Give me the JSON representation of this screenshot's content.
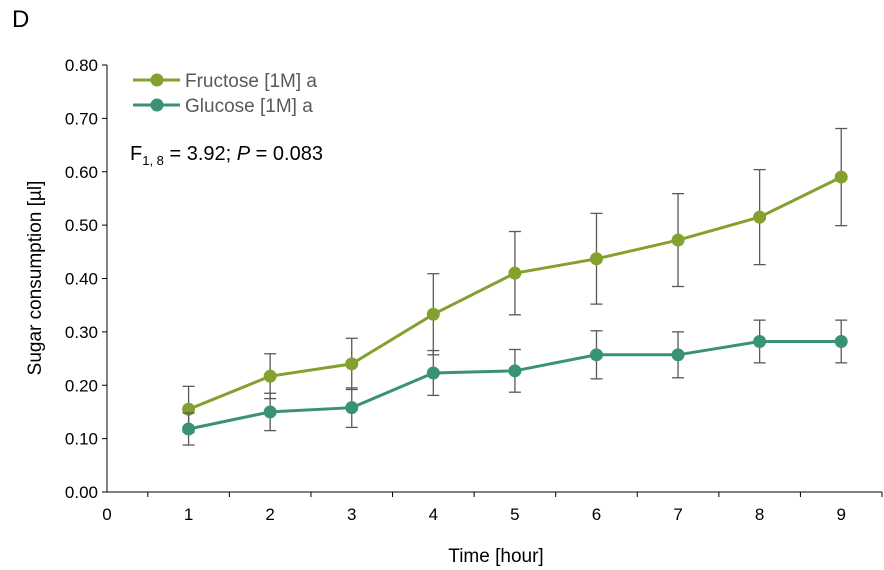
{
  "panel_label": "D",
  "stat_annotation": {
    "prefix": "F",
    "subscript": "1, 8",
    "middle": " = 3.92; ",
    "p_symbol": "P",
    "suffix": " = 0.083"
  },
  "colors": {
    "fructose": "#84A12F",
    "glucose": "#3A9276",
    "error_bar": "#595959",
    "axis": "#000000"
  },
  "chart_data": {
    "type": "line",
    "title": "",
    "xlabel": "Time [hour]",
    "ylabel": "Sugar consumption [µl]",
    "x": [
      1,
      2,
      3,
      4,
      5,
      6,
      7,
      8,
      9
    ],
    "xlim": [
      0,
      9.5
    ],
    "ylim": [
      0,
      0.8
    ],
    "x_ticks": [
      "0",
      "1",
      "2",
      "3",
      "4",
      "5",
      "6",
      "7",
      "8",
      "9"
    ],
    "y_ticks": [
      "0.00",
      "0.10",
      "0.20",
      "0.30",
      "0.40",
      "0.50",
      "0.60",
      "0.70",
      "0.80"
    ],
    "grid": false,
    "legend_position": "top-left",
    "series": [
      {
        "name": "Fructose [1M] a",
        "values": [
          0.155,
          0.217,
          0.24,
          0.333,
          0.41,
          0.437,
          0.472,
          0.515,
          0.59
        ],
        "errors": [
          0.043,
          0.042,
          0.048,
          0.076,
          0.078,
          0.085,
          0.087,
          0.089,
          0.091
        ]
      },
      {
        "name": "Glucose [1M] a",
        "values": [
          0.118,
          0.15,
          0.158,
          0.223,
          0.227,
          0.257,
          0.257,
          0.282,
          0.282
        ],
        "errors": [
          0.03,
          0.035,
          0.037,
          0.042,
          0.04,
          0.045,
          0.043,
          0.04,
          0.04
        ]
      }
    ]
  }
}
